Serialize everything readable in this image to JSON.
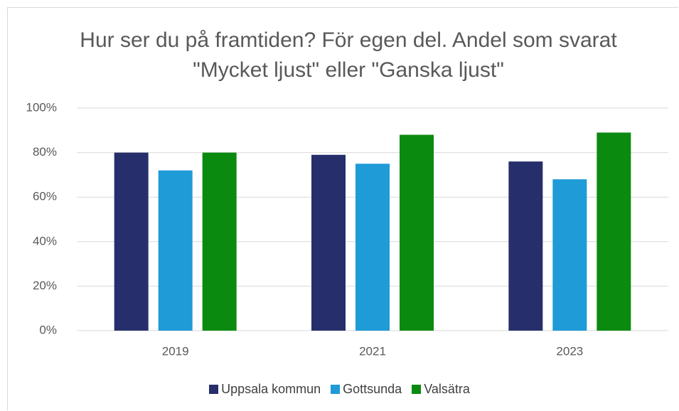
{
  "chart_data": {
    "type": "bar",
    "title": "Hur ser du på framtiden? För egen del. Andel som svarat \"Mycket ljust\" eller \"Ganska ljust\"",
    "categories": [
      "2019",
      "2021",
      "2023"
    ],
    "series": [
      {
        "name": "Uppsala kommun",
        "color": "#262f6b",
        "values": [
          80,
          79,
          76
        ]
      },
      {
        "name": "Gottsunda",
        "color": "#1f9bd7",
        "values": [
          72,
          75,
          68
        ]
      },
      {
        "name": "Valsätra",
        "color": "#0a8a0f",
        "values": [
          80,
          88,
          89
        ]
      }
    ],
    "ylim": [
      0,
      100
    ],
    "yticks": [
      {
        "value": 0,
        "label": "0%"
      },
      {
        "value": 20,
        "label": "20%"
      },
      {
        "value": 40,
        "label": "40%"
      },
      {
        "value": 60,
        "label": "60%"
      },
      {
        "value": 80,
        "label": "80%"
      },
      {
        "value": 100,
        "label": "100%"
      }
    ],
    "grid": true,
    "legend": "bottom"
  }
}
